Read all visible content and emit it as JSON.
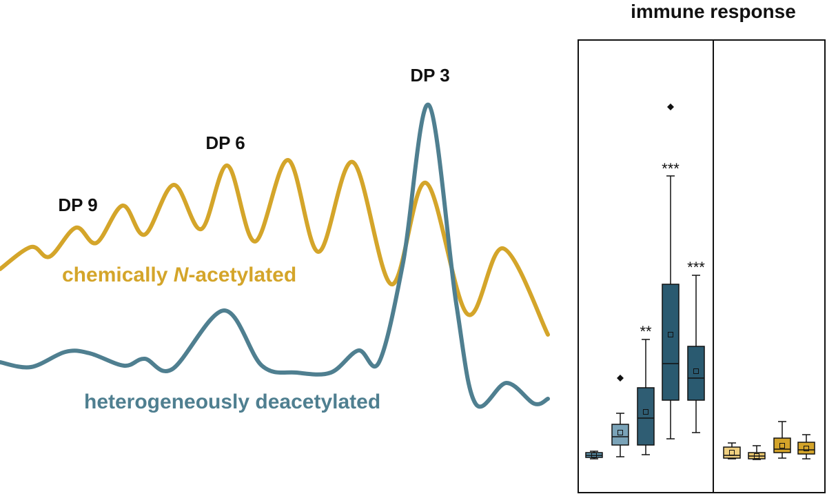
{
  "peaks": {
    "dp9": "DP 9",
    "dp6": "DP 6",
    "dp3": "DP 3"
  },
  "curves": {
    "gold": {
      "before": "chemically ",
      "italic": "N",
      "after": "-acetylated"
    },
    "teal": "heterogeneously deacetylated"
  },
  "boxplot": {
    "title": "immune response",
    "significance": [
      "**",
      "***",
      "***"
    ]
  }
}
